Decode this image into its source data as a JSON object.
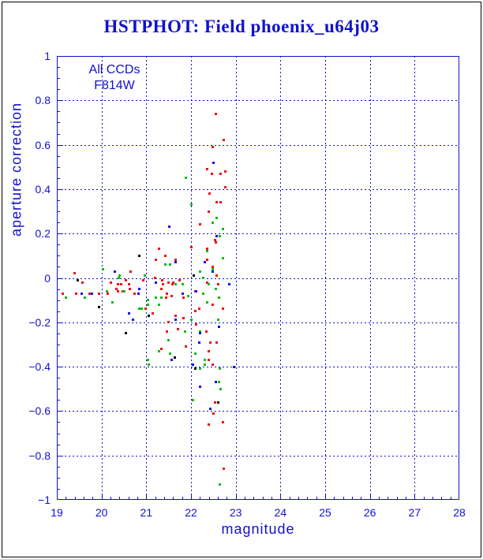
{
  "window": {
    "background": "#ffffff",
    "border_color": "#000000"
  },
  "title": {
    "text": "HSTPHOT: Field phoenix_u64j03",
    "color": "#1111cc"
  },
  "annotations": {
    "line1": "All CCDs",
    "line2": "F814W"
  },
  "colors": {
    "accent_blue": "#1111cc",
    "red_points": "#ee1111",
    "green_points": "#11bb11",
    "blue_points": "#1111ee",
    "black_points": "#000000"
  },
  "axes": {
    "x": {
      "label": "magnitude",
      "min": 19,
      "max": 28,
      "major_step": 1,
      "minor_step": 0.2,
      "tick_labels": [
        "19",
        "20",
        "21",
        "22",
        "23",
        "24",
        "25",
        "26",
        "27",
        "28"
      ],
      "tick_values": [
        19,
        20,
        21,
        22,
        23,
        24,
        25,
        26,
        27,
        28
      ],
      "gridlines": [
        20,
        21,
        22,
        23,
        24,
        25,
        26,
        27
      ]
    },
    "y": {
      "label": "aperture correction",
      "min": -1,
      "max": 1,
      "major_step": 0.2,
      "minor_step": 0.05,
      "tick_labels": [
        "1",
        "0.8",
        "0.6",
        "0.4",
        "0.2",
        "0",
        "−0.2",
        "−0.4",
        "−0.6",
        "−0.8",
        "−1"
      ],
      "tick_values": [
        1,
        0.8,
        0.6,
        0.4,
        0.2,
        0,
        -0.2,
        -0.4,
        -0.6,
        -0.8,
        -1
      ],
      "gridlines": [
        0.8,
        0.6,
        0.4,
        0.2,
        0,
        -0.2,
        -0.4,
        -0.6,
        -0.8
      ]
    }
  },
  "chart_data": {
    "type": "scatter",
    "title": "HSTPHOT: Field phoenix_u64j03",
    "xlabel": "magnitude",
    "ylabel": "aperture correction",
    "xlim": [
      19,
      28
    ],
    "ylim": [
      -1,
      1
    ],
    "grid": true,
    "grid_style": "dotted",
    "legend_position": "none",
    "marker": "square",
    "marker_size_px": 3,
    "series": [
      {
        "name": "red",
        "color": "#ee1111",
        "points": [
          [
            22.55,
            0.74
          ],
          [
            22.74,
            0.62
          ],
          [
            22.48,
            0.59
          ],
          [
            22.37,
            0.49
          ],
          [
            22.46,
            0.47
          ],
          [
            22.67,
            0.47
          ],
          [
            22.76,
            0.48
          ],
          [
            22.76,
            0.41
          ],
          [
            22.42,
            0.38
          ],
          [
            22.58,
            0.34
          ],
          [
            22.67,
            0.34
          ],
          [
            22.39,
            0.3
          ],
          [
            22.21,
            0.24
          ],
          [
            22.53,
            0.17
          ],
          [
            22.55,
            0.16
          ],
          [
            22.37,
            0.13
          ],
          [
            22.0,
            0.14
          ],
          [
            21.29,
            0.13
          ],
          [
            21.42,
            0.1
          ],
          [
            21.21,
            0.08
          ],
          [
            21.66,
            0.08
          ],
          [
            22.37,
            0.08
          ],
          [
            22.48,
            0.05
          ],
          [
            22.58,
            0.01
          ],
          [
            19.39,
            0.02
          ],
          [
            19.58,
            -0.02
          ],
          [
            20.65,
            0.03
          ],
          [
            20.21,
            -0.02
          ],
          [
            20.54,
            -0.01
          ],
          [
            20.94,
            -0.01
          ],
          [
            20.44,
            -0.03
          ],
          [
            20.34,
            -0.05
          ],
          [
            19.13,
            -0.07
          ],
          [
            19.44,
            -0.07
          ],
          [
            19.94,
            -0.07
          ],
          [
            20.64,
            -0.05
          ],
          [
            21.19,
            0.0
          ],
          [
            21.35,
            -0.01
          ],
          [
            21.49,
            -0.02
          ],
          [
            21.61,
            -0.02
          ],
          [
            21.75,
            -0.01
          ],
          [
            22.37,
            -0.02
          ],
          [
            20.36,
            -0.03
          ],
          [
            20.13,
            -0.07
          ],
          [
            19.74,
            -0.07
          ],
          [
            20.36,
            -0.06
          ],
          [
            20.47,
            -0.06
          ],
          [
            20.61,
            -0.03
          ],
          [
            20.73,
            -0.07
          ],
          [
            20.99,
            -0.14
          ],
          [
            21.14,
            -0.16
          ],
          [
            21.38,
            -0.03
          ],
          [
            21.58,
            -0.03
          ],
          [
            21.33,
            -0.05
          ],
          [
            21.47,
            -0.07
          ],
          [
            21.45,
            -0.09
          ],
          [
            21.56,
            -0.08
          ],
          [
            21.84,
            -0.09
          ],
          [
            22.09,
            -0.06
          ],
          [
            22.09,
            -0.15
          ],
          [
            22.19,
            -0.14
          ],
          [
            22.48,
            -0.12
          ],
          [
            22.6,
            -0.03
          ],
          [
            22.72,
            -0.14
          ],
          [
            21.66,
            -0.17
          ],
          [
            21.84,
            -0.18
          ],
          [
            21.49,
            -0.2
          ],
          [
            21.7,
            -0.23
          ],
          [
            22.12,
            -0.21
          ],
          [
            21.47,
            -0.24
          ],
          [
            22.35,
            -0.24
          ],
          [
            22.44,
            -0.29
          ],
          [
            22.58,
            -0.29
          ],
          [
            21.89,
            -0.31
          ],
          [
            22.39,
            -0.33
          ],
          [
            21.33,
            -0.32
          ],
          [
            22.39,
            -0.37
          ],
          [
            22.49,
            -0.39
          ],
          [
            22.53,
            -0.56
          ],
          [
            22.51,
            -0.61
          ],
          [
            22.39,
            -0.66
          ],
          [
            22.72,
            -0.65
          ],
          [
            22.74,
            -0.86
          ]
        ]
      },
      {
        "name": "green",
        "color": "#11bb11",
        "points": [
          [
            21.88,
            0.45
          ],
          [
            22.0,
            0.33
          ],
          [
            22.58,
            0.27
          ],
          [
            22.49,
            0.25
          ],
          [
            22.72,
            0.22
          ],
          [
            22.64,
            0.19
          ],
          [
            22.37,
            0.12
          ],
          [
            21.42,
            0.06
          ],
          [
            21.54,
            0.06
          ],
          [
            22.21,
            0.03
          ],
          [
            22.49,
            0.04
          ],
          [
            22.72,
            0.09
          ],
          [
            20.03,
            0.04
          ],
          [
            20.39,
            0.0
          ],
          [
            20.97,
            0.01
          ],
          [
            19.21,
            -0.09
          ],
          [
            19.62,
            -0.09
          ],
          [
            20.12,
            -0.06
          ],
          [
            20.24,
            -0.11
          ],
          [
            20.5,
            -0.06
          ],
          [
            20.85,
            -0.14
          ],
          [
            21.03,
            -0.1
          ],
          [
            22.28,
            0.0
          ],
          [
            20.41,
            0.01
          ],
          [
            21.22,
            -0.09
          ],
          [
            21.29,
            -0.12
          ],
          [
            21.03,
            -0.12
          ],
          [
            20.89,
            -0.14
          ],
          [
            21.33,
            -0.09
          ],
          [
            21.22,
            -0.02
          ],
          [
            21.66,
            -0.03
          ],
          [
            21.82,
            -0.03
          ],
          [
            21.93,
            -0.08
          ],
          [
            22.28,
            -0.07
          ],
          [
            22.37,
            -0.11
          ],
          [
            22.62,
            -0.09
          ],
          [
            22.4,
            -0.03
          ],
          [
            22.55,
            -0.05
          ],
          [
            22.6,
            -0.19
          ],
          [
            22.0,
            -0.19
          ],
          [
            21.86,
            -0.24
          ],
          [
            22.21,
            -0.24
          ],
          [
            21.49,
            -0.28
          ],
          [
            21.54,
            -0.34
          ],
          [
            22.09,
            -0.34
          ],
          [
            22.3,
            -0.37
          ],
          [
            21.29,
            -0.33
          ],
          [
            21.03,
            -0.37
          ],
          [
            21.05,
            -0.39
          ],
          [
            22.3,
            -0.39
          ],
          [
            22.21,
            -0.41
          ],
          [
            22.64,
            -0.41
          ],
          [
            22.62,
            -0.47
          ],
          [
            22.67,
            -0.5
          ],
          [
            22.04,
            -0.55
          ],
          [
            22.64,
            -0.93
          ]
        ]
      },
      {
        "name": "blue",
        "color": "#1111ee",
        "points": [
          [
            22.51,
            0.52
          ],
          [
            21.52,
            0.23
          ],
          [
            22.58,
            0.19
          ],
          [
            21.65,
            0.07
          ],
          [
            22.3,
            0.07
          ],
          [
            22.48,
            0.03
          ],
          [
            20.3,
            0.03
          ],
          [
            19.56,
            -0.07
          ],
          [
            19.79,
            -0.07
          ],
          [
            20.82,
            -0.07
          ],
          [
            20.85,
            -0.05
          ],
          [
            20.62,
            -0.16
          ],
          [
            20.71,
            -0.19
          ],
          [
            21.22,
            -0.02
          ],
          [
            21.81,
            -0.07
          ],
          [
            22.12,
            -0.06
          ],
          [
            22.86,
            -0.03
          ],
          [
            21.66,
            -0.19
          ],
          [
            22.21,
            -0.25
          ],
          [
            22.19,
            -0.29
          ],
          [
            22.62,
            -0.22
          ],
          [
            21.56,
            -0.37
          ],
          [
            22.04,
            -0.39
          ],
          [
            22.97,
            -0.4
          ],
          [
            22.55,
            -0.47
          ],
          [
            22.21,
            -0.49
          ],
          [
            22.44,
            -0.59
          ]
        ]
      },
      {
        "name": "black",
        "color": "#000000",
        "points": [
          [
            20.84,
            0.1
          ],
          [
            19.46,
            -0.01
          ],
          [
            22.07,
            0.01
          ],
          [
            19.95,
            -0.13
          ],
          [
            21.06,
            -0.17
          ],
          [
            20.54,
            -0.25
          ],
          [
            21.63,
            -0.36
          ],
          [
            22.09,
            -0.41
          ],
          [
            22.6,
            -0.56
          ]
        ]
      }
    ]
  }
}
